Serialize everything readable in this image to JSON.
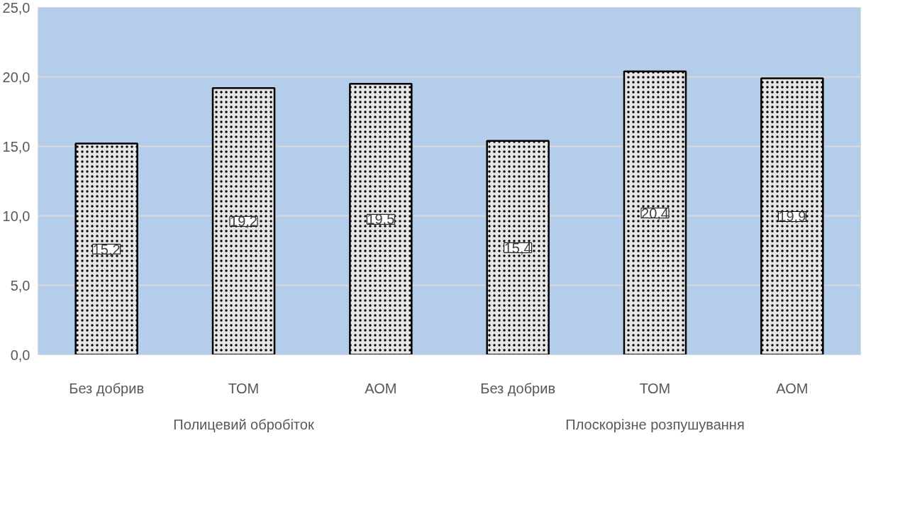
{
  "chart_data": {
    "type": "bar",
    "categories": [
      "Без добрив",
      "ТОМ",
      "АОМ",
      "Без добрив",
      "ТОМ",
      "АОМ"
    ],
    "annotations": [
      "Полицевий обробіток",
      "Плоскорізне розпушування"
    ],
    "series": [
      {
        "color": "#000000",
        "values": [
          15.2,
          19.2,
          19.5,
          15.4,
          20.4,
          19.9
        ],
        "value_labels": [
          "15,2",
          "19,2",
          "19,5",
          "15,4",
          "20,4",
          "19,9"
        ]
      }
    ],
    "ylim": [
      0,
      25
    ],
    "yticks": [
      {
        "value": 0,
        "label": "0,0"
      },
      {
        "value": 5,
        "label": "5,0"
      },
      {
        "value": 10,
        "label": "10,0"
      },
      {
        "value": 15,
        "label": "15,0"
      },
      {
        "value": 20,
        "label": "20,0"
      },
      {
        "value": 25,
        "label": "25,0"
      }
    ],
    "grid": "y"
  }
}
